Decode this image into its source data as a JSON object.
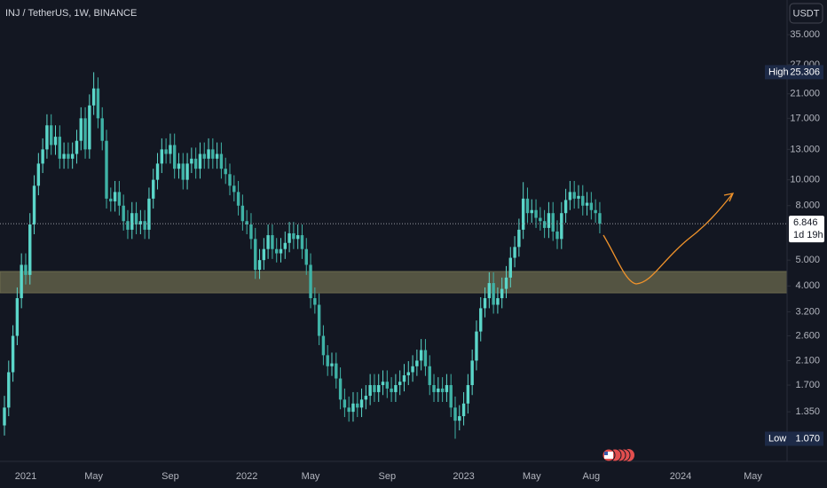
{
  "chart_data": {
    "type": "candlestick",
    "title": "INJ / TetherUS, 1W, BINANCE",
    "currency": "USDT",
    "log_scale": true,
    "grid": false,
    "up_color": "#5bd6c9",
    "down_color": "#3fb2a6",
    "zone_color": "#6b6a4e",
    "arrow_color": "#f0932b",
    "ylim": [
      0.88,
      47.2
    ],
    "yticks": [
      {
        "value": 35,
        "label": "35.000"
      },
      {
        "value": 27,
        "label": "27.000"
      },
      {
        "value": 21,
        "label": "21.000"
      },
      {
        "value": 17,
        "label": "17.000"
      },
      {
        "value": 13,
        "label": "13.000"
      },
      {
        "value": 10,
        "label": "10.000"
      },
      {
        "value": 8,
        "label": "8.000"
      },
      {
        "value": 5,
        "label": "5.000"
      },
      {
        "value": 4,
        "label": "4.000"
      },
      {
        "value": 3.2,
        "label": "3.200"
      },
      {
        "value": 2.6,
        "label": "2.600"
      },
      {
        "value": 2.1,
        "label": "2.100"
      },
      {
        "value": 1.7,
        "label": "1.700"
      },
      {
        "value": 1.35,
        "label": "1.350"
      }
    ],
    "high_label": "High",
    "high_value": 25.306,
    "low_label": "Low",
    "low_value": {
      "value": 1.07,
      "label": "1.070"
    },
    "countdown": "1d 19h",
    "zone": [
      3.77,
      4.53
    ],
    "categories": [
      null,
      null,
      null,
      null,
      null,
      "2021",
      null,
      null,
      null,
      null,
      null,
      null,
      null,
      null,
      null,
      null,
      null,
      null,
      null,
      null,
      null,
      "May",
      null,
      null,
      null,
      null,
      null,
      null,
      null,
      null,
      null,
      null,
      null,
      null,
      null,
      null,
      null,
      null,
      null,
      "Sep",
      null,
      null,
      null,
      null,
      null,
      null,
      null,
      null,
      null,
      null,
      null,
      null,
      null,
      null,
      null,
      null,
      null,
      "2022",
      null,
      null,
      null,
      null,
      null,
      null,
      null,
      null,
      null,
      null,
      null,
      null,
      null,
      null,
      "May",
      null,
      null,
      null,
      null,
      null,
      null,
      null,
      null,
      null,
      null,
      null,
      null,
      null,
      null,
      null,
      null,
      null,
      "Sep",
      null,
      null,
      null,
      null,
      null,
      null,
      null,
      null,
      null,
      null,
      null,
      null,
      null,
      null,
      null,
      null,
      null,
      "2023",
      null,
      null,
      null,
      null,
      null,
      null,
      null,
      null,
      null,
      null,
      null,
      null,
      null,
      null,
      null,
      "May",
      null,
      null,
      null,
      null,
      null,
      null,
      null,
      null,
      null,
      null,
      null,
      null,
      null,
      "Aug",
      null,
      null,
      null,
      null,
      null,
      null,
      null,
      null,
      null,
      null,
      null,
      null,
      null,
      null,
      null,
      null,
      null,
      null,
      null,
      null,
      "2024",
      null,
      null,
      null,
      null,
      null,
      null,
      null,
      null,
      null,
      null,
      null,
      null,
      null,
      null,
      null,
      null,
      "May",
      null,
      null,
      null,
      null,
      null,
      null
    ],
    "open": [
      1.2,
      1.4,
      1.9,
      2.6,
      3.6,
      4.8,
      4.4,
      6.8,
      9.5,
      11.5,
      13,
      16,
      13.5,
      14.5,
      12,
      12.5,
      12,
      12.5,
      14,
      17,
      13,
      19,
      22,
      17,
      14,
      8.5,
      8.3,
      9,
      8,
      7,
      6.5,
      7.5,
      6.8,
      7,
      6.5,
      8.5,
      10,
      11.5,
      13,
      12.5,
      13.5,
      11,
      11.5,
      10,
      11.5,
      12,
      11,
      12.5,
      12,
      13,
      12,
      12.5,
      11,
      10.5,
      9.5,
      9,
      8,
      7,
      6.8,
      6,
      4.6,
      5,
      5.5,
      6.2,
      5.5,
      5.3,
      5.5,
      5.8,
      6.3,
      6,
      6.2,
      5.5,
      4.8,
      3.6,
      3.4,
      2.6,
      2.2,
      2,
      2.05,
      1.8,
      1.5,
      1.4,
      1.35,
      1.45,
      1.4,
      1.5,
      1.55,
      1.7,
      1.6,
      1.7,
      1.75,
      1.65,
      1.6,
      1.7,
      1.75,
      1.85,
      1.9,
      2,
      2.1,
      2.3,
      2,
      1.7,
      1.6,
      1.65,
      1.6,
      1.7,
      1.4,
      1.25,
      1.3,
      1.45,
      1.7,
      2.1,
      2.7,
      3.3,
      3.6,
      4.1,
      3.4,
      3.6,
      3.9,
      4.3,
      5.1,
      5.6,
      6.5,
      8.5,
      7.5,
      7.7,
      7.2,
      7,
      6.6,
      7.5,
      6.4,
      6,
      7.5,
      8.4,
      9,
      8.5,
      8.7,
      8,
      8.2,
      7.7,
      7.5,
      null,
      null,
      null,
      null,
      null,
      null,
      null,
      null,
      null,
      null,
      null,
      null,
      null,
      null,
      null,
      null,
      null,
      null,
      null,
      null,
      null,
      null,
      null,
      null,
      null,
      null,
      null,
      null,
      null,
      null,
      null,
      null,
      null,
      null,
      null,
      null,
      null,
      null,
      null,
      null,
      null,
      null
    ],
    "high": [
      1.55,
      2.1,
      2.85,
      3.95,
      5.3,
      5.3,
      7.5,
      10.4,
      12.6,
      14.3,
      17.6,
      17.6,
      16,
      16,
      13.8,
      13.8,
      13.8,
      15.4,
      18.7,
      18.7,
      20.9,
      25.306,
      24.2,
      18.7,
      15.4,
      9.35,
      9.9,
      9.9,
      8.8,
      7.7,
      8.25,
      8.25,
      7.7,
      7.7,
      9.35,
      11,
      12.6,
      14.3,
      14.3,
      14.9,
      14.9,
      12.6,
      12.6,
      12.6,
      13.2,
      13.2,
      13.8,
      13.8,
      14.3,
      14.3,
      13.8,
      13.8,
      12.1,
      11.5,
      10.4,
      9.9,
      8.8,
      7.7,
      7.5,
      6.6,
      5.5,
      6.05,
      6.8,
      6.8,
      6.05,
      6.05,
      6.4,
      6.95,
      6.95,
      6.8,
      6.8,
      6.05,
      5.3,
      3.95,
      3.75,
      2.85,
      2.4,
      2.25,
      2.25,
      1.98,
      1.65,
      1.54,
      1.6,
      1.6,
      1.65,
      1.7,
      1.87,
      1.87,
      1.87,
      1.93,
      1.93,
      1.82,
      1.87,
      1.93,
      2.04,
      2.09,
      2.2,
      2.31,
      2.53,
      2.53,
      2.2,
      1.87,
      1.82,
      1.82,
      1.87,
      1.87,
      1.54,
      1.43,
      1.6,
      1.87,
      2.31,
      2.97,
      3.63,
      3.95,
      4.5,
      4.5,
      3.95,
      4.3,
      4.75,
      5.6,
      6.15,
      7.15,
      9.8,
      9.35,
      8.45,
      8.45,
      7.9,
      7.7,
      8.25,
      8.25,
      7.05,
      8.25,
      9.25,
      9.9,
      9.9,
      9.55,
      9.55,
      9,
      9,
      8.45,
      8.25,
      null,
      null,
      null,
      null,
      null,
      null,
      null,
      null,
      null,
      null,
      null,
      null,
      null,
      null,
      null,
      null,
      null,
      null,
      null,
      null,
      null,
      null,
      null,
      null,
      null,
      null,
      null,
      null,
      null,
      null,
      null,
      null,
      null,
      null,
      null,
      null,
      null,
      null,
      null,
      null,
      null,
      null
    ],
    "low": [
      1.1,
      1.3,
      1.75,
      2.4,
      3.3,
      4.05,
      4.05,
      6.25,
      8.75,
      10.6,
      12,
      12.4,
      12.4,
      11,
      11,
      11,
      11,
      11.5,
      12.9,
      12,
      12,
      17.5,
      15.6,
      12.9,
      7.8,
      7.6,
      7.6,
      7.35,
      6.45,
      6,
      6,
      6.25,
      6.25,
      6,
      6,
      7.8,
      9.2,
      10.6,
      11.5,
      11.5,
      10.1,
      10.1,
      9.2,
      9.2,
      10.6,
      10.1,
      10.1,
      11,
      11,
      11,
      11,
      10.1,
      9.65,
      8.75,
      8.3,
      7.35,
      6.45,
      6.25,
      5.5,
      4.25,
      4.25,
      4.6,
      5.05,
      5.05,
      4.9,
      4.9,
      5.05,
      5.35,
      5.5,
      5.5,
      5.05,
      4.4,
      3.3,
      3.15,
      2.4,
      2.02,
      1.84,
      1.84,
      1.65,
      1.38,
      1.29,
      1.24,
      1.24,
      1.29,
      1.29,
      1.38,
      1.43,
      1.47,
      1.47,
      1.56,
      1.52,
      1.47,
      1.47,
      1.56,
      1.61,
      1.7,
      1.75,
      1.84,
      1.93,
      1.84,
      1.56,
      1.47,
      1.47,
      1.47,
      1.47,
      1.29,
      1.07,
      1.15,
      1.2,
      1.33,
      1.56,
      1.93,
      2.48,
      3.05,
      3.3,
      3.15,
      3.15,
      3.3,
      3.6,
      3.95,
      4.7,
      5.15,
      6,
      6.9,
      6.9,
      6.6,
      6.45,
      6.05,
      6.05,
      5.9,
      5.5,
      5.5,
      6.9,
      7.7,
      7.8,
      7.8,
      7.35,
      7.35,
      7.1,
      6.9,
      6.3,
      null,
      null,
      null,
      null,
      null,
      null,
      null,
      null,
      null,
      null,
      null,
      null,
      null,
      null,
      null,
      null,
      null,
      null,
      null,
      null,
      null,
      null,
      null,
      null,
      null,
      null,
      null,
      null,
      null,
      null,
      null,
      null,
      null,
      null,
      null,
      null,
      null,
      null,
      null,
      null,
      null,
      null
    ],
    "close": [
      1.4,
      1.9,
      2.6,
      3.6,
      4.8,
      4.4,
      6.8,
      9.5,
      11.5,
      13,
      16,
      13.5,
      14.5,
      12,
      12.5,
      12,
      12.5,
      14,
      17,
      13,
      19,
      22,
      17,
      14,
      8.5,
      8.3,
      9,
      8,
      7,
      6.5,
      7.5,
      6.8,
      7,
      6.5,
      8.5,
      10,
      11.5,
      13,
      12.5,
      13.5,
      11,
      11.5,
      10,
      11.5,
      12,
      11,
      12.5,
      12,
      13,
      12,
      12.5,
      11,
      10.5,
      9.5,
      9,
      8,
      7,
      6.8,
      6,
      4.6,
      5,
      5.5,
      6.2,
      5.5,
      5.3,
      5.5,
      5.8,
      6.3,
      6,
      6.2,
      5.5,
      4.8,
      3.6,
      3.4,
      2.6,
      2.2,
      2,
      2.05,
      1.8,
      1.5,
      1.4,
      1.35,
      1.45,
      1.4,
      1.5,
      1.55,
      1.7,
      1.6,
      1.7,
      1.75,
      1.65,
      1.6,
      1.7,
      1.75,
      1.85,
      1.9,
      2,
      2.1,
      2.3,
      2,
      1.7,
      1.6,
      1.65,
      1.6,
      1.7,
      1.4,
      1.25,
      1.3,
      1.45,
      1.7,
      2.1,
      2.7,
      3.3,
      3.6,
      4.1,
      3.4,
      3.6,
      3.9,
      4.3,
      5.1,
      5.6,
      6.5,
      8.5,
      7.5,
      7.7,
      7.2,
      7,
      6.6,
      7.5,
      6.4,
      6,
      7.5,
      8.4,
      9,
      8.5,
      8.7,
      8,
      8.2,
      7.7,
      7.5,
      6.846,
      null,
      null,
      null,
      null,
      null,
      null,
      null,
      null,
      null,
      null,
      null,
      null,
      null,
      null,
      null,
      null,
      null,
      null,
      null,
      null,
      null,
      null,
      null,
      null,
      null,
      null,
      null,
      null,
      null,
      null,
      null,
      null,
      null,
      null,
      null,
      null,
      null,
      null,
      null,
      null,
      null,
      null
    ]
  }
}
